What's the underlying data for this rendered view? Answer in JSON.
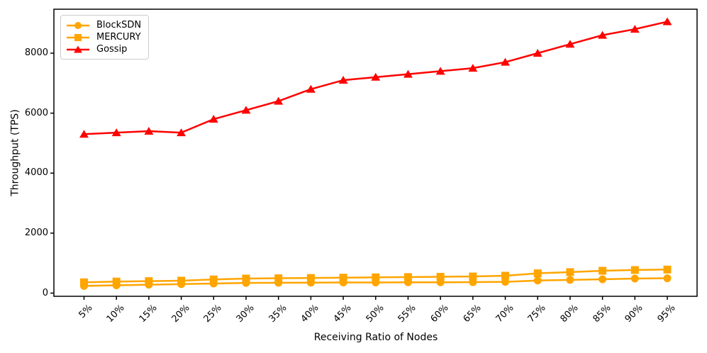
{
  "figure": {
    "background": "#ffffff",
    "axis_color": "#000000"
  },
  "chart_data": {
    "type": "line",
    "title": "",
    "xlabel": "Receiving Ratio of Nodes",
    "ylabel": "Throughput (TPS)",
    "categories": [
      "5%",
      "10%",
      "15%",
      "20%",
      "25%",
      "30%",
      "35%",
      "40%",
      "45%",
      "50%",
      "55%",
      "60%",
      "65%",
      "70%",
      "75%",
      "80%",
      "85%",
      "90%",
      "95%"
    ],
    "yticks": [
      0,
      2000,
      4000,
      6000,
      8000
    ],
    "ylim": [
      -110,
      9470
    ],
    "grid": false,
    "legend_position": "upper-left",
    "series": [
      {
        "name": "BlockSDN",
        "color": "#FFA500",
        "marker": "circle",
        "values": [
          240,
          260,
          280,
          300,
          320,
          340,
          345,
          350,
          355,
          355,
          360,
          360,
          365,
          375,
          420,
          440,
          460,
          485,
          495
        ]
      },
      {
        "name": "MERCURY",
        "color": "#FFA500",
        "marker": "square",
        "values": [
          360,
          385,
          400,
          415,
          455,
          485,
          495,
          505,
          515,
          525,
          535,
          545,
          555,
          580,
          660,
          700,
          745,
          770,
          785
        ]
      },
      {
        "name": "Gossip",
        "color": "#FF0000",
        "marker": "triangle",
        "values": [
          5300,
          5350,
          5400,
          5350,
          5800,
          6100,
          6400,
          6800,
          7100,
          7200,
          7300,
          7400,
          7500,
          7700,
          8000,
          8300,
          8600,
          8800,
          9050
        ]
      }
    ]
  }
}
